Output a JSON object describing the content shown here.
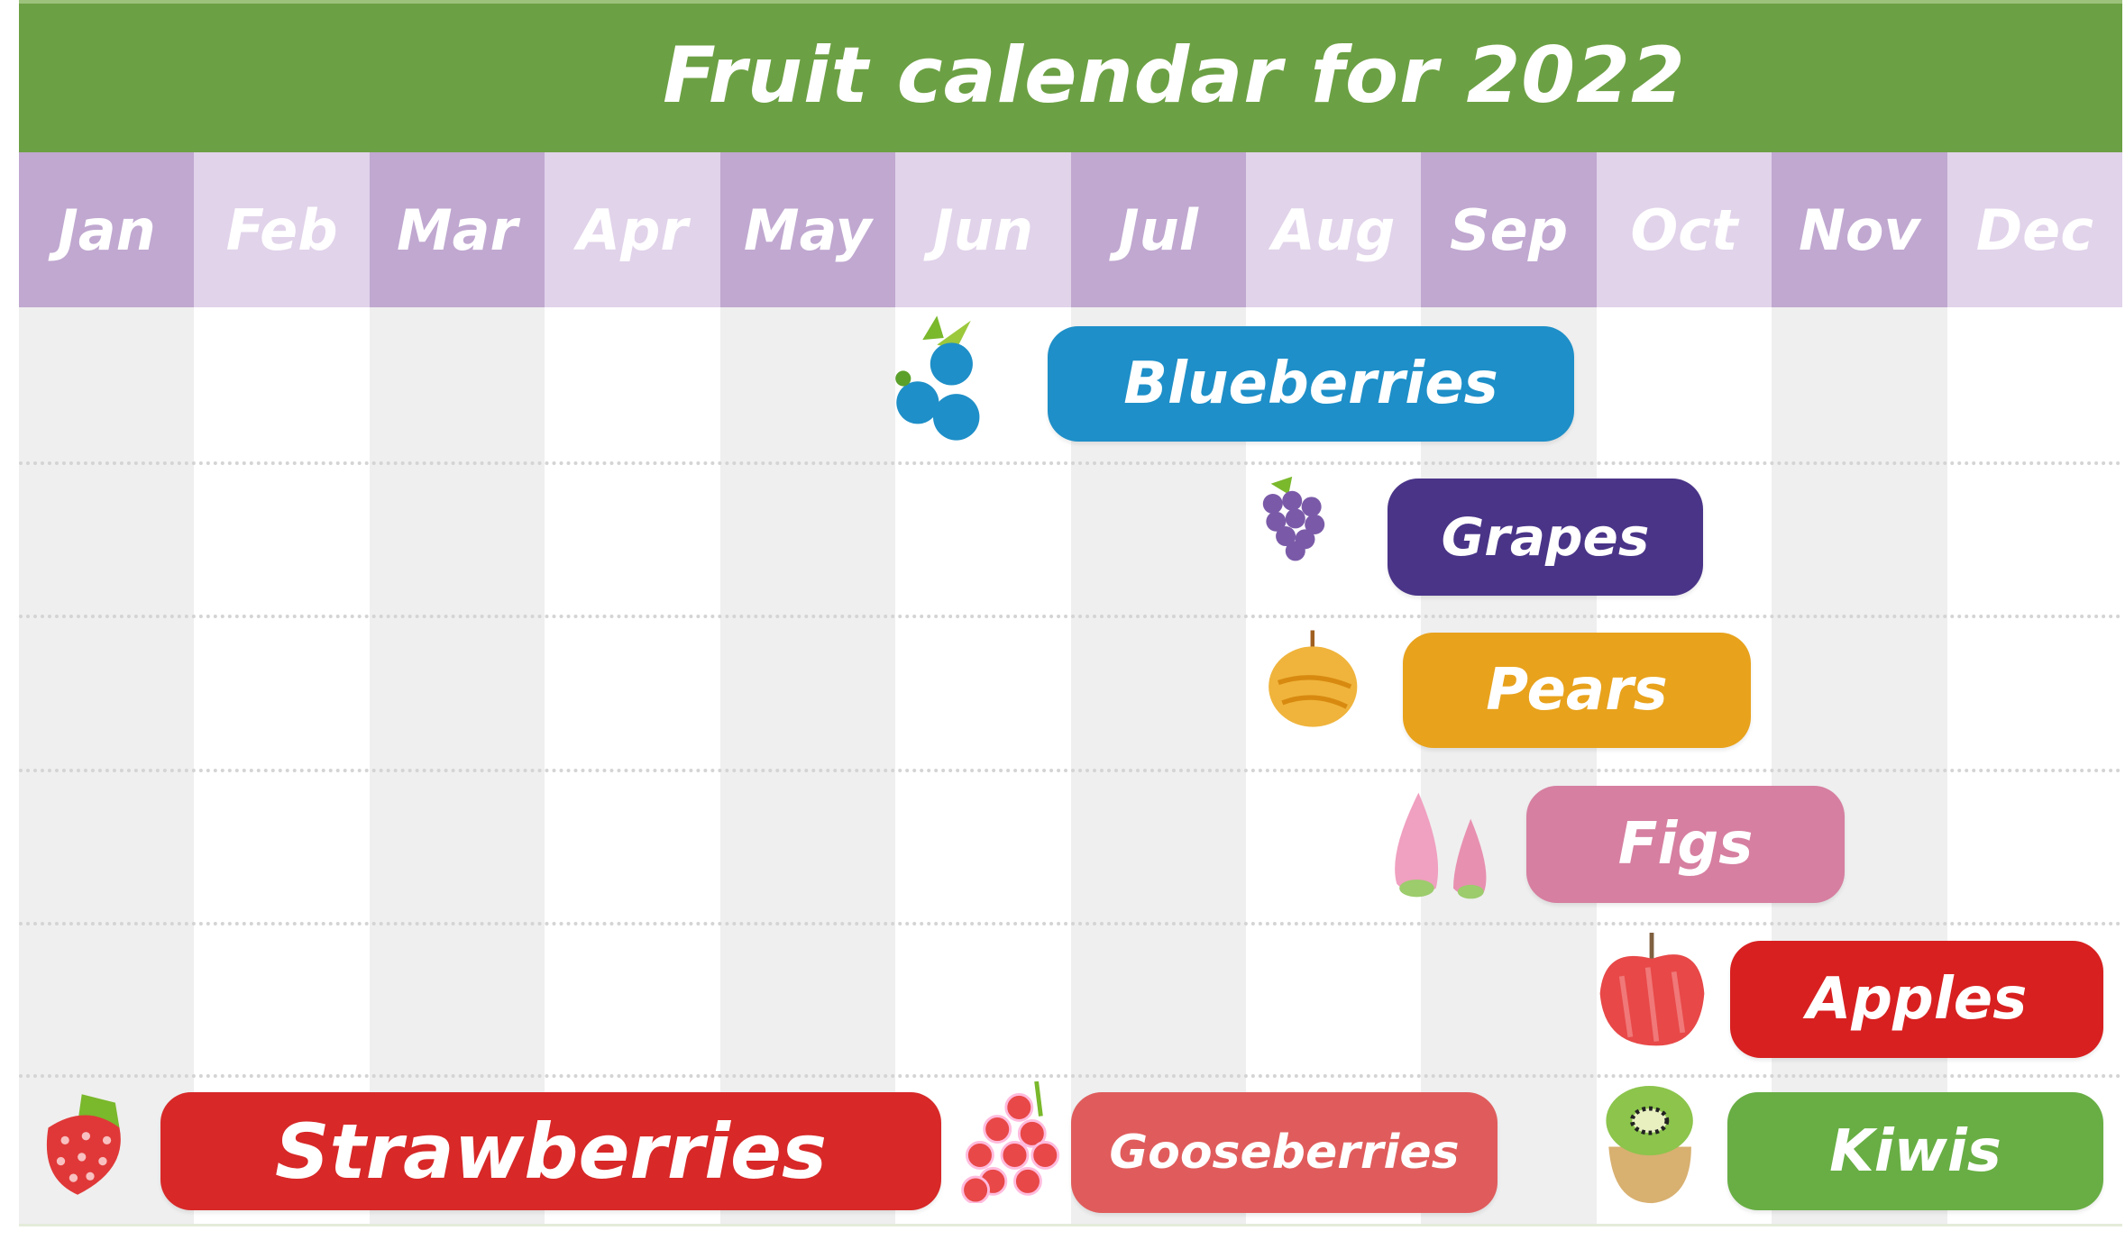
{
  "title": "Fruit calendar for 2022",
  "months": [
    "Jan",
    "Feb",
    "Mar",
    "Apr",
    "May",
    "Jun",
    "Jul",
    "Aug",
    "Sep",
    "Oct",
    "Nov",
    "Dec"
  ],
  "fruits": [
    {
      "label": "Blueberries",
      "color": "#1e8fc8",
      "icon": "blueberries-icon"
    },
    {
      "label": "Grapes",
      "color": "#4a3488",
      "icon": "grapes-icon"
    },
    {
      "label": "Pears",
      "color": "#e8a21c",
      "icon": "pear-icon"
    },
    {
      "label": "Figs",
      "color": "#d67fa0",
      "icon": "figs-icon"
    },
    {
      "label": "Apples",
      "color": "#d82020",
      "icon": "apple-icon"
    },
    {
      "label": "Strawberries",
      "color": "#d82828",
      "icon": "strawberry-icon"
    },
    {
      "label": "Gooseberries",
      "color": "#e05c5c",
      "icon": "gooseberries-icon"
    },
    {
      "label": "Kiwis",
      "color": "#68ae44",
      "icon": "kiwi-icon"
    }
  ],
  "colors": {
    "header": "#6ca044",
    "month_dark": "#c0a8d0",
    "month_light": "#e1d3ea"
  }
}
